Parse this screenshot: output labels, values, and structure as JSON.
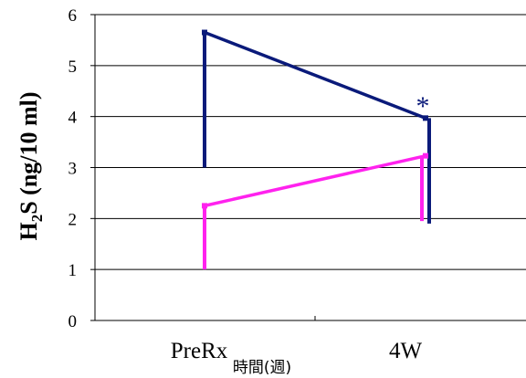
{
  "chart_data": {
    "type": "line",
    "categories": [
      "PreRx",
      "4W"
    ],
    "ylabel": {
      "main": "H",
      "sub": "2",
      "rest": "S (ng/10 ml)"
    },
    "xlabel": "時間(週)",
    "ylim": [
      0,
      6
    ],
    "yticks": [
      "0",
      "1",
      "2",
      "3",
      "4",
      "5",
      "6"
    ],
    "grid": true,
    "series": [
      {
        "color": "#0a1a7a",
        "values": [
          5.65,
          3.97
        ],
        "errors": [
          {
            "dir": "down",
            "to": 3.0
          },
          {
            "dir": "down",
            "to": 1.9
          }
        ]
      },
      {
        "color": "#ff22ee",
        "values": [
          2.25,
          3.23
        ],
        "errors": [
          {
            "dir": "down",
            "to": 1.0
          },
          {
            "dir": "down",
            "to": 1.95
          }
        ]
      }
    ],
    "annotations": [
      {
        "text": "*",
        "category": "4W",
        "y": 4.1,
        "color": "#0a1a7a"
      }
    ]
  }
}
